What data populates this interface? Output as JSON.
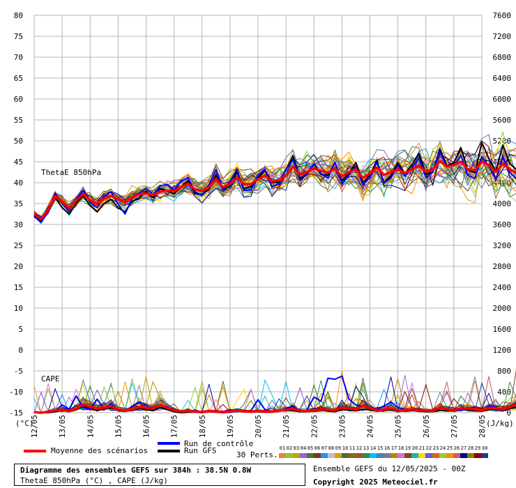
{
  "chart_data": {
    "type": "line",
    "panels": [
      {
        "name": "ThetaE 850hPa",
        "units": "°C"
      },
      {
        "name": "CAPE",
        "units": "J/kg"
      }
    ],
    "y_left": {
      "label": "(°C)",
      "min": -15,
      "max": 80,
      "step": 5,
      "ticks": [
        "80",
        "75",
        "70",
        "65",
        "60",
        "55",
        "50",
        "45",
        "40",
        "35",
        "30",
        "25",
        "20",
        "15",
        "10",
        "5",
        "0",
        "-5",
        "-10",
        "-15"
      ]
    },
    "y_right": {
      "label": "(J/kg)",
      "min": 0,
      "max": 7600,
      "step": 400,
      "ticks": [
        "7600",
        "7200",
        "6800",
        "6400",
        "6000",
        "5600",
        "5200",
        "4800",
        "4400",
        "4000",
        "3600",
        "3200",
        "2800",
        "2400",
        "2000",
        "1600",
        "1200",
        "800",
        "400",
        "0"
      ]
    },
    "x_dates": [
      "12/05",
      "13/05",
      "14/05",
      "15/05",
      "16/05",
      "17/05",
      "18/05",
      "19/05",
      "20/05",
      "21/05",
      "22/05",
      "23/05",
      "24/05",
      "25/05",
      "26/05",
      "27/05",
      "28/05"
    ],
    "x_step_hours": 6,
    "grid": true,
    "thetae_mean": [
      32.5,
      31.3,
      33.5,
      36.8,
      35.5,
      33.8,
      35.7,
      37.3,
      35.8,
      34.8,
      36.2,
      36.8,
      36.0,
      35.3,
      36.5,
      37.2,
      37.4,
      37.1,
      37.8,
      38.1,
      38.0,
      38.9,
      39.7,
      38.4,
      38.0,
      38.9,
      40.8,
      38.9,
      39.7,
      41.3,
      39.6,
      39.7,
      40.8,
      41.7,
      40.3,
      40.6,
      41.7,
      43.8,
      41.9,
      42.6,
      43.4,
      42.8,
      42.4,
      43.4,
      41.5,
      42.5,
      43.2,
      41.1,
      42.2,
      43.6,
      41.9,
      42.5,
      43.2,
      42.3,
      43.2,
      44.1,
      42.6,
      43.2,
      45.1,
      43.9,
      44.2,
      45.0,
      43.2,
      43.0,
      45.0,
      44.2,
      42.6,
      44.6,
      43.2,
      42.3,
      43.8,
      44.3
    ],
    "thetae_control": [
      32.0,
      30.5,
      33.0,
      37.5,
      35.0,
      33.2,
      36.0,
      38.2,
      35.2,
      34.0,
      36.8,
      37.8,
      34.8,
      32.5,
      36.2,
      37.5,
      38.6,
      37.2,
      39.2,
      39.6,
      38.2,
      40.3,
      41.2,
      37.8,
      37.0,
      39.6,
      43.1,
      38.3,
      40.2,
      43.0,
      38.1,
      38.3,
      41.8,
      43.2,
      39.0,
      39.8,
      43.2,
      45.6,
      40.5,
      42.0,
      44.5,
      42.2,
      41.1,
      44.9,
      39.8,
      41.8,
      44.0,
      39.5,
      41.2,
      44.8,
      39.9,
      41.1,
      44.2,
      41.5,
      43.6,
      45.8,
      41.2,
      42.6,
      47.4,
      43.8,
      44.1,
      46.5,
      41.8,
      41.0,
      46.2,
      44.0,
      40.6,
      46.2,
      42.4,
      40.9,
      45.0,
      43.2
    ],
    "thetae_gfs": [
      31.8,
      31.0,
      34.0,
      36.5,
      34.0,
      32.5,
      35.0,
      36.8,
      34.5,
      33.0,
      35.0,
      36.0,
      34.0,
      33.0,
      35.5,
      36.2,
      38.0,
      36.4,
      38.6,
      38.1,
      37.3,
      39.0,
      40.4,
      37.4,
      37.2,
      38.4,
      41.8,
      38.2,
      39.2,
      42.5,
      38.5,
      39.1,
      41.0,
      43.1,
      40.0,
      40.2,
      43.0,
      46.5,
      41.0,
      42.1,
      44.4,
      42.0,
      41.8,
      44.7,
      40.5,
      42.2,
      44.8,
      40.1,
      41.8,
      45.2,
      40.0,
      41.7,
      44.8,
      42.2,
      44.2,
      47.0,
      42.0,
      42.6,
      48.0,
      44.1,
      44.7,
      48.4,
      43.0,
      42.4,
      49.6,
      45.8,
      42.7,
      49.0,
      44.5,
      43.1,
      50.2,
      44.8
    ],
    "cape_mean": [
      10,
      0,
      18,
      48,
      55,
      30,
      80,
      155,
      115,
      80,
      100,
      125,
      60,
      45,
      70,
      110,
      95,
      80,
      150,
      95,
      45,
      25,
      35,
      20,
      15,
      30,
      25,
      15,
      25,
      40,
      30,
      20,
      35,
      25,
      20,
      40,
      55,
      75,
      40,
      30,
      45,
      70,
      55,
      45,
      100,
      85,
      60,
      130,
      90,
      45,
      60,
      85,
      35,
      55,
      60,
      50,
      40,
      35,
      95,
      65,
      50,
      80,
      85,
      65,
      45,
      90,
      80,
      65,
      110,
      160,
      145,
      95
    ],
    "cape_control": [
      20,
      0,
      10,
      30,
      150,
      70,
      320,
      100,
      60,
      260,
      70,
      180,
      40,
      30,
      110,
      210,
      150,
      60,
      140,
      120,
      40,
      20,
      30,
      20,
      10,
      40,
      30,
      20,
      60,
      20,
      40,
      40,
      250,
      60,
      30,
      30,
      80,
      120,
      30,
      50,
      300,
      220,
      660,
      640,
      700,
      260,
      150,
      120,
      110,
      60,
      130,
      200,
      100,
      70,
      60,
      70,
      50,
      40,
      70,
      80,
      60,
      40,
      90,
      60,
      30,
      120,
      100,
      40,
      130,
      170,
      200,
      80
    ],
    "cape_gfs": [
      10,
      0,
      0,
      20,
      40,
      20,
      60,
      120,
      80,
      40,
      80,
      90,
      60,
      30,
      50,
      80,
      60,
      40,
      100,
      60,
      20,
      0,
      10,
      10,
      0,
      20,
      10,
      0,
      10,
      30,
      20,
      10,
      20,
      10,
      10,
      30,
      40,
      40,
      20,
      20,
      30,
      50,
      30,
      20,
      60,
      50,
      40,
      60,
      60,
      30,
      40,
      60,
      20,
      40,
      40,
      30,
      20,
      20,
      40,
      40,
      30,
      50,
      60,
      40,
      30,
      60,
      60,
      40,
      80,
      110,
      100,
      60
    ],
    "annotations": {
      "thetae_panel": "ThetaE 850hPa",
      "cape_panel": "CAPE"
    }
  },
  "legend": {
    "mean": "Moyenne des scénarios",
    "control": "Run de contrôle",
    "gfs": "Run GFS",
    "perts_label": "30 Perts.",
    "pert_numbers": [
      "01",
      "02",
      "03",
      "04",
      "05",
      "06",
      "07",
      "08",
      "09",
      "10",
      "11",
      "12",
      "13",
      "14",
      "15",
      "16",
      "17",
      "18",
      "19",
      "20",
      "21",
      "22",
      "23",
      "24",
      "25",
      "26",
      "27",
      "28",
      "29",
      "30"
    ],
    "pert_colors": [
      "#e6862a",
      "#8fc33a",
      "#c9a100",
      "#9966cc",
      "#3a7a3a",
      "#7a3a12",
      "#1e90ff",
      "#c0c0c0",
      "#d4a017",
      "#556b2f",
      "#8b6914",
      "#a0522d",
      "#2e8b57",
      "#00bfff",
      "#4682b4",
      "#708090",
      "#b8860b",
      "#da70d6",
      "#8b4513",
      "#20b2aa",
      "#ffd700",
      "#6a5acd",
      "#d2691e",
      "#9acd32",
      "#ff8c00",
      "#cd5c5c",
      "#00008b",
      "#808000",
      "#8b0000",
      "#1e3a8a"
    ]
  },
  "colors": {
    "mean": "#ff0000",
    "control": "#0000ff",
    "gfs": "#000000",
    "grid": "#b4b4b4"
  },
  "footer": {
    "title_line1": "Diagramme des ensembles GEFS sur 384h : 38.5N 0.8W",
    "title_line2": "ThetaE 850hPa (°C) , CAPE (J/kg)",
    "run_info": "Ensemble GEFS du 12/05/2025 - 00Z",
    "copyright": "Copyright 2025 Meteociel.fr"
  }
}
